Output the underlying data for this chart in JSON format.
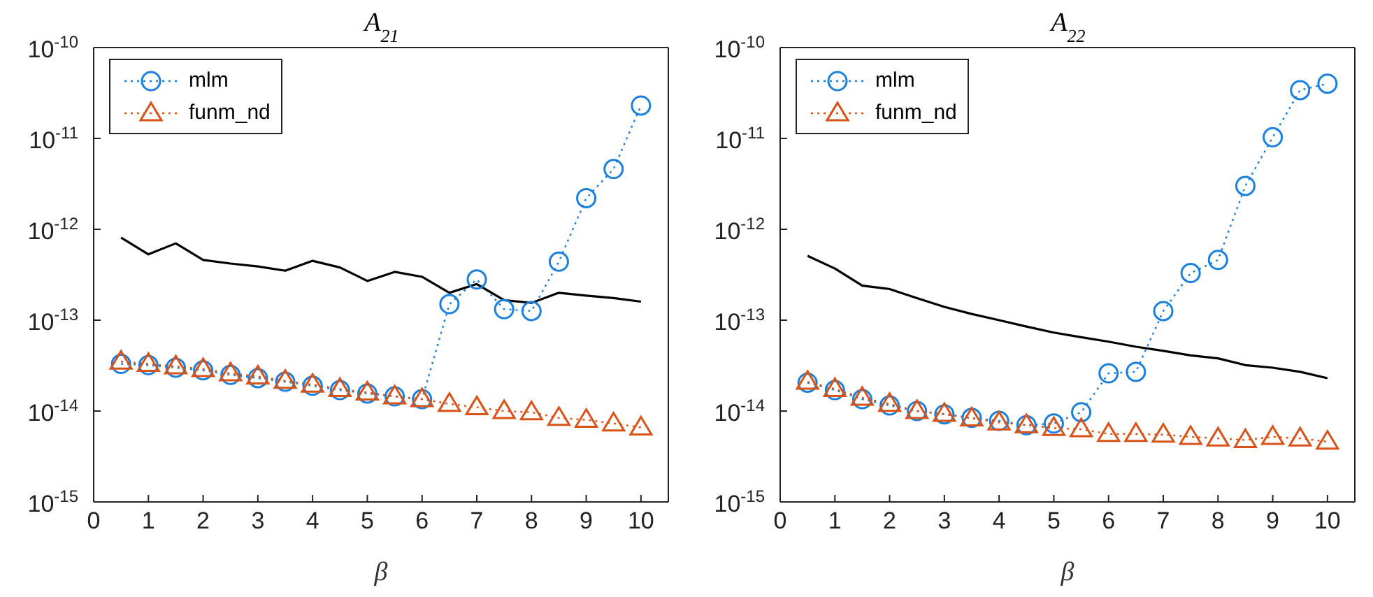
{
  "chart_data": [
    {
      "type": "line",
      "title": "A$_{21}$",
      "xlabel": "β",
      "x": [
        0.5,
        1,
        1.5,
        2,
        2.5,
        3,
        3.5,
        4,
        4.5,
        5,
        5.5,
        6,
        6.5,
        7,
        7.5,
        8,
        8.5,
        9,
        9.5,
        10
      ],
      "series": [
        {
          "name": "mlm",
          "color": "#1a80e0",
          "marker": "circle",
          "line_style": "dotted",
          "values": [
            3.3e-14,
            3.2e-14,
            3e-14,
            2.8e-14,
            2.5e-14,
            2.3e-14,
            2.1e-14,
            1.9e-14,
            1.7e-14,
            1.56e-14,
            1.45e-14,
            1.35e-14,
            1.5e-13,
            2.8e-13,
            1.32e-13,
            1.26e-13,
            4.4e-13,
            2.2e-12,
            4.6e-12,
            2.3e-11
          ]
        },
        {
          "name": "funm_nd",
          "color": "#d95319",
          "marker": "triangle",
          "line_style": "dotted",
          "values": [
            3.5e-14,
            3.3e-14,
            3.1e-14,
            2.9e-14,
            2.6e-14,
            2.4e-14,
            2.15e-14,
            1.95e-14,
            1.75e-14,
            1.6e-14,
            1.45e-14,
            1.35e-14,
            1.2e-14,
            1.1e-14,
            1e-14,
            9.7e-15,
            8.4e-15,
            8e-15,
            7.3e-15,
            6.6e-15
          ]
        },
        {
          "color": "#000000",
          "marker": "none",
          "line_style": "solid",
          "values": [
            8.1e-13,
            5.3e-13,
            7e-13,
            4.6e-13,
            4.2e-13,
            3.9e-13,
            3.5e-13,
            4.5e-13,
            3.8e-13,
            2.7e-13,
            3.4e-13,
            3e-13,
            2e-13,
            2.5e-13,
            1.66e-13,
            1.55e-13,
            2e-13,
            1.86e-13,
            1.75e-13,
            1.6e-13
          ]
        }
      ],
      "xlim": [
        0,
        10.5
      ],
      "xticks": [
        0,
        1,
        2,
        3,
        4,
        5,
        6,
        7,
        8,
        9,
        10
      ],
      "log": true,
      "ylim": [
        1e-15,
        1e-10
      ],
      "yticks": [
        {
          "value": 1e-15,
          "label": "10$^{-15}$"
        },
        {
          "value": 1e-14,
          "label": "10$^{-14}$"
        },
        {
          "value": 1e-13,
          "label": "10$^{-13}$"
        },
        {
          "value": 1e-12,
          "label": "10$^{-12}$"
        },
        {
          "value": 1e-11,
          "label": "10$^{-11}$"
        },
        {
          "value": 1e-10,
          "label": "10$^{-10}$"
        }
      ],
      "grid": false,
      "legend": "top left"
    },
    {
      "type": "line",
      "title": "A$_{22}$",
      "xlabel": "β",
      "x": [
        0.5,
        1,
        1.5,
        2,
        2.5,
        3,
        3.5,
        4,
        4.5,
        5,
        5.5,
        6,
        6.5,
        7,
        7.5,
        8,
        8.5,
        9,
        9.5,
        10
      ],
      "series": [
        {
          "name": "mlm",
          "color": "#1a80e0",
          "marker": "circle",
          "line_style": "dotted",
          "values": [
            2.05e-14,
            1.7e-14,
            1.35e-14,
            1.15e-14,
            1e-14,
            9.2e-15,
            8.4e-15,
            7.8e-15,
            7e-15,
            7.3e-15,
            9.7e-15,
            2.6e-14,
            2.7e-14,
            1.26e-13,
            3.3e-13,
            4.6e-13,
            3e-12,
            1.03e-11,
            3.4e-11,
            4e-11
          ]
        },
        {
          "name": "funm_nd",
          "color": "#d95319",
          "marker": "triangle",
          "line_style": "dotted",
          "values": [
            2.1e-14,
            1.75e-14,
            1.4e-14,
            1.2e-14,
            1e-14,
            9.3e-15,
            8.3e-15,
            7.5e-15,
            7e-15,
            6.5e-15,
            6.3e-15,
            5.6e-15,
            5.6e-15,
            5.5e-15,
            5.2e-15,
            5e-15,
            4.8e-15,
            5.2e-15,
            5e-15,
            4.6e-15
          ]
        },
        {
          "color": "#000000",
          "marker": "none",
          "line_style": "solid",
          "values": [
            5.1e-13,
            3.7e-13,
            2.4e-13,
            2.2e-13,
            1.75e-13,
            1.4e-13,
            1.17e-13,
            1e-13,
            8.5e-14,
            7.3e-14,
            6.5e-14,
            5.8e-14,
            5.1e-14,
            4.6e-14,
            4.1e-14,
            3.8e-14,
            3.2e-14,
            3e-14,
            2.7e-14,
            2.3e-14
          ]
        }
      ],
      "xlim": [
        0,
        10.5
      ],
      "xticks": [
        0,
        1,
        2,
        3,
        4,
        5,
        6,
        7,
        8,
        9,
        10
      ],
      "log": true,
      "ylim": [
        1e-15,
        1e-10
      ],
      "yticks": [
        {
          "value": 1e-15,
          "label": "10$^{-15}$"
        },
        {
          "value": 1e-14,
          "label": "10$^{-14}$"
        },
        {
          "value": 1e-13,
          "label": "10$^{-13}$"
        },
        {
          "value": 1e-12,
          "label": "10$^{-12}$"
        },
        {
          "value": 1e-11,
          "label": "10$^{-11}$"
        },
        {
          "value": 1e-10,
          "label": "10$^{-10}$"
        }
      ],
      "grid": false,
      "legend": "top left"
    }
  ]
}
